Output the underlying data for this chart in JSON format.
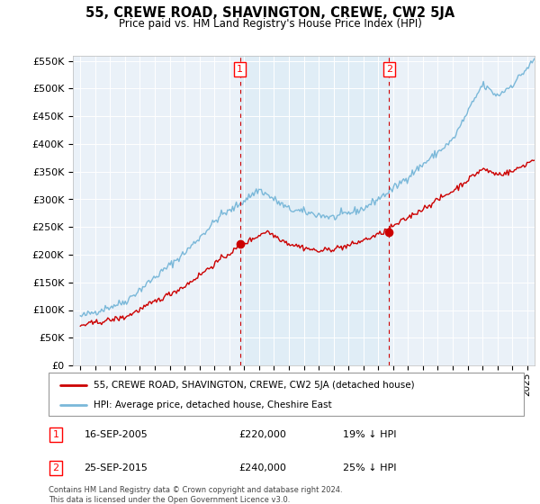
{
  "title": "55, CREWE ROAD, SHAVINGTON, CREWE, CW2 5JA",
  "subtitle": "Price paid vs. HM Land Registry's House Price Index (HPI)",
  "ylim": [
    0,
    560000
  ],
  "yticks": [
    0,
    50000,
    100000,
    150000,
    200000,
    250000,
    300000,
    350000,
    400000,
    450000,
    500000,
    550000
  ],
  "xlim_start": 1994.5,
  "xlim_end": 2025.5,
  "sale1_x": 2005.71,
  "sale1_y": 220000,
  "sale2_x": 2015.73,
  "sale2_y": 240000,
  "hpi_color": "#7ab8d9",
  "hpi_fill_color": "#d0e8f5",
  "price_color": "#cc0000",
  "bg_color": "#eaf1f8",
  "grid_color": "#ffffff",
  "legend_label_price": "55, CREWE ROAD, SHAVINGTON, CREWE, CW2 5JA (detached house)",
  "legend_label_hpi": "HPI: Average price, detached house, Cheshire East",
  "annotation1_label": "1",
  "annotation1_date": "16-SEP-2005",
  "annotation1_price": "£220,000",
  "annotation1_hpi": "19% ↓ HPI",
  "annotation2_label": "2",
  "annotation2_date": "25-SEP-2015",
  "annotation2_price": "£240,000",
  "annotation2_hpi": "25% ↓ HPI",
  "footer": "Contains HM Land Registry data © Crown copyright and database right 2024.\nThis data is licensed under the Open Government Licence v3.0."
}
